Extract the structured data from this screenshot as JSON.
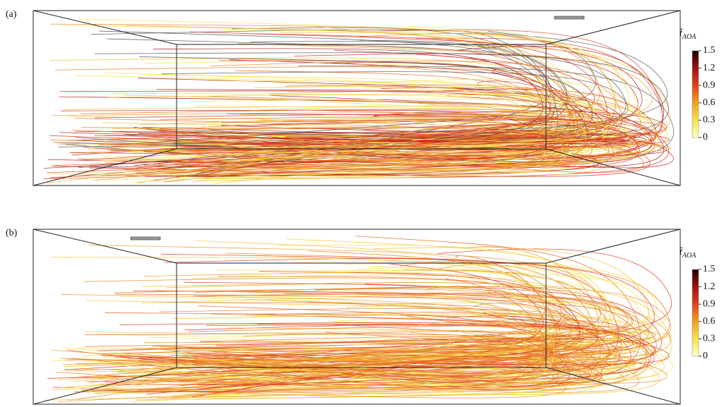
{
  "panels": [
    {
      "label": "(a)",
      "colorbar": {
        "title": "t̂",
        "subscript": "AOA",
        "lim": [
          0,
          1.5
        ],
        "ticks": [
          {
            "value": 1.5,
            "label": "1.5"
          },
          {
            "value": 1.2,
            "label": "1.2"
          },
          {
            "value": 0.9,
            "label": "0.9"
          },
          {
            "value": 0.6,
            "label": "0.6"
          },
          {
            "value": 0.3,
            "label": "0.3"
          },
          0
        ]
      }
    },
    {
      "label": "(b)",
      "colorbar": {
        "title": "t̂",
        "subscript": "AOA",
        "lim": [
          0,
          1.5
        ],
        "ticks": [
          {
            "value": 1.5,
            "label": "1.5"
          },
          {
            "value": 1.2,
            "label": "1.2"
          },
          {
            "value": 0.9,
            "label": "0.9"
          },
          {
            "value": 0.6,
            "label": "0.6"
          },
          {
            "value": 0.3,
            "label": "0.3"
          },
          0
        ]
      }
    }
  ]
}
